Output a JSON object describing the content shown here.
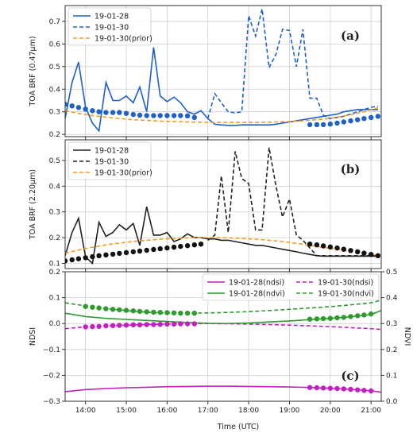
{
  "chart_data": [
    {
      "type": "line",
      "panel_label": "(a)",
      "ylabel": "TOA BRF (0.47μm)",
      "ylim": [
        0.19,
        0.77
      ],
      "yticks": [
        0.2,
        0.3,
        0.4,
        0.5,
        0.6,
        0.7
      ],
      "ytick_labels": [
        "0.2",
        "0.3",
        "0.4",
        "0.5",
        "0.6",
        "0.7"
      ],
      "grid": true,
      "legend_position": "top-left",
      "series": [
        {
          "name": "19-01-28",
          "color": "#1f5fc8",
          "style": "solid",
          "x": [
            13.5,
            13.67,
            13.83,
            14.0,
            14.17,
            14.33,
            14.5,
            14.67,
            14.83,
            15.0,
            15.17,
            15.33,
            15.5,
            15.67,
            15.83,
            16.0,
            16.17,
            16.33,
            16.5,
            16.67,
            16.83,
            17.0,
            17.17,
            17.33,
            17.5,
            17.67,
            17.83,
            18.0,
            18.17,
            18.33,
            18.5,
            18.67,
            18.83,
            19.0,
            19.17,
            19.33,
            19.5,
            19.67,
            19.83,
            20.0,
            20.17,
            20.33,
            20.5,
            20.67,
            20.83,
            21.0,
            21.17
          ],
          "y": [
            0.27,
            0.43,
            0.52,
            0.32,
            0.25,
            0.215,
            0.43,
            0.35,
            0.35,
            0.37,
            0.34,
            0.41,
            0.3,
            0.585,
            0.37,
            0.345,
            0.365,
            0.34,
            0.3,
            0.29,
            0.305,
            0.27,
            0.245,
            0.242,
            0.24,
            0.24,
            0.242,
            0.242,
            0.242,
            0.242,
            0.242,
            0.245,
            0.25,
            0.255,
            0.26,
            0.265,
            0.27,
            0.275,
            0.28,
            0.285,
            0.29,
            0.3,
            0.305,
            0.31,
            0.31,
            0.31,
            0.31
          ]
        },
        {
          "name": "19-01-30",
          "color": "#1f5fc8",
          "style": "dashed",
          "x": [
            17.0,
            17.17,
            17.33,
            17.5,
            17.67,
            17.83,
            18.0,
            18.17,
            18.33,
            18.5,
            18.67,
            18.83,
            19.0,
            19.17,
            19.33,
            19.5,
            19.67,
            19.83,
            20.0,
            20.17,
            20.33,
            20.5,
            20.67,
            20.83,
            21.0,
            21.17
          ],
          "y": [
            0.27,
            0.38,
            0.34,
            0.3,
            0.295,
            0.3,
            0.725,
            0.635,
            0.755,
            0.495,
            0.555,
            0.665,
            0.66,
            0.5,
            0.665,
            0.36,
            0.36,
            0.285,
            0.27,
            0.275,
            0.28,
            0.29,
            0.3,
            0.31,
            0.32,
            0.325
          ]
        },
        {
          "name": "19-01-30(prior)",
          "color": "#f39c25",
          "style": "dashed",
          "x": [
            13.5,
            13.83,
            14.17,
            14.5,
            14.83,
            15.17,
            15.5,
            15.83,
            16.17,
            16.5,
            16.83,
            17.17,
            17.5,
            17.83,
            18.17,
            18.5,
            18.83,
            19.17,
            19.5,
            19.83,
            20.17,
            20.5,
            20.83,
            21.17
          ],
          "y": [
            0.305,
            0.293,
            0.283,
            0.276,
            0.27,
            0.265,
            0.262,
            0.259,
            0.257,
            0.255,
            0.254,
            0.253,
            0.253,
            0.253,
            0.253,
            0.254,
            0.256,
            0.258,
            0.262,
            0.268,
            0.276,
            0.287,
            0.3,
            0.318
          ]
        }
      ],
      "markers": [
        {
          "color": "#1f5fc8",
          "x": [
            13.5,
            13.67,
            13.83,
            14.0,
            14.17,
            14.33,
            14.5,
            14.67,
            14.83,
            15.0,
            15.17,
            15.33,
            15.5,
            15.67,
            15.83,
            16.0,
            16.17,
            16.33,
            16.5,
            16.67
          ],
          "y": [
            0.333,
            0.326,
            0.319,
            0.312,
            0.305,
            0.3,
            0.297,
            0.297,
            0.297,
            0.293,
            0.288,
            0.285,
            0.283,
            0.283,
            0.283,
            0.283,
            0.283,
            0.283,
            0.282,
            0.275
          ]
        },
        {
          "color": "#1f5fc8",
          "x": [
            19.5,
            19.67,
            19.83,
            20.0,
            20.17,
            20.33,
            20.5,
            20.67,
            20.83,
            21.0,
            21.17
          ],
          "y": [
            0.243,
            0.243,
            0.243,
            0.246,
            0.25,
            0.255,
            0.26,
            0.265,
            0.27,
            0.275,
            0.28
          ]
        }
      ]
    },
    {
      "type": "line",
      "panel_label": "(b)",
      "ylabel": "TOA BRF (2.20μm)",
      "ylim": [
        0.08,
        0.58
      ],
      "yticks": [
        0.1,
        0.2,
        0.3,
        0.4,
        0.5
      ],
      "ytick_labels": [
        "0.1",
        "0.2",
        "0.3",
        "0.4",
        "0.5"
      ],
      "grid": true,
      "legend_position": "top-left",
      "series": [
        {
          "name": "19-01-28",
          "color": "#222222",
          "style": "solid",
          "x": [
            13.5,
            13.67,
            13.83,
            14.0,
            14.17,
            14.33,
            14.5,
            14.67,
            14.83,
            15.0,
            15.17,
            15.33,
            15.5,
            15.67,
            15.83,
            16.0,
            16.17,
            16.33,
            16.5,
            16.67,
            16.83,
            17.0,
            17.17,
            17.33,
            17.5,
            17.67,
            17.83,
            18.0,
            18.17,
            18.33,
            18.5,
            18.67,
            18.83,
            19.0,
            19.17,
            19.33,
            19.5,
            19.67,
            19.83,
            20.0,
            20.17,
            20.33,
            20.5,
            20.67,
            20.83,
            21.0,
            21.17
          ],
          "y": [
            0.13,
            0.22,
            0.275,
            0.125,
            0.1,
            0.26,
            0.205,
            0.22,
            0.25,
            0.23,
            0.255,
            0.17,
            0.32,
            0.21,
            0.21,
            0.22,
            0.185,
            0.195,
            0.215,
            0.2,
            0.2,
            0.195,
            0.195,
            0.19,
            0.19,
            0.185,
            0.18,
            0.175,
            0.17,
            0.17,
            0.165,
            0.16,
            0.155,
            0.15,
            0.145,
            0.14,
            0.135,
            0.13,
            0.128,
            0.128,
            0.128,
            0.128,
            0.128,
            0.128,
            0.128,
            0.128,
            0.128
          ]
        },
        {
          "name": "19-01-30",
          "color": "#222222",
          "style": "dashed",
          "x": [
            17.0,
            17.17,
            17.33,
            17.5,
            17.67,
            17.83,
            18.0,
            18.17,
            18.33,
            18.5,
            18.67,
            18.83,
            19.0,
            19.17,
            19.33,
            19.5,
            19.67,
            19.83,
            20.0,
            20.17,
            20.33,
            20.5,
            20.67,
            20.83,
            21.0,
            21.17
          ],
          "y": [
            0.19,
            0.21,
            0.44,
            0.22,
            0.535,
            0.43,
            0.41,
            0.23,
            0.23,
            0.55,
            0.4,
            0.28,
            0.35,
            0.21,
            0.19,
            0.16,
            0.13,
            0.13,
            0.13,
            0.13,
            0.13,
            0.13,
            0.13,
            0.13,
            0.13,
            0.13
          ]
        },
        {
          "name": "19-01-30(prior)",
          "color": "#f39c25",
          "style": "dashed",
          "x": [
            13.5,
            13.83,
            14.17,
            14.5,
            14.83,
            15.17,
            15.5,
            15.83,
            16.17,
            16.5,
            16.83,
            17.17,
            17.5,
            17.83,
            18.17,
            18.5,
            18.83,
            19.17,
            19.5,
            19.83,
            20.17,
            20.5,
            20.83,
            21.17
          ],
          "y": [
            0.14,
            0.152,
            0.163,
            0.172,
            0.179,
            0.185,
            0.19,
            0.194,
            0.197,
            0.199,
            0.2,
            0.2,
            0.199,
            0.197,
            0.194,
            0.19,
            0.185,
            0.178,
            0.17,
            0.162,
            0.154,
            0.146,
            0.139,
            0.132
          ]
        }
      ],
      "markers": [
        {
          "color": "#111111",
          "x": [
            13.5,
            13.67,
            13.83,
            14.0,
            14.17,
            14.33,
            14.5,
            14.67,
            14.83,
            15.0,
            15.17,
            15.33,
            15.5,
            15.67,
            15.83,
            16.0,
            16.17,
            16.33,
            16.5,
            16.67,
            16.83
          ],
          "y": [
            0.11,
            0.114,
            0.118,
            0.122,
            0.126,
            0.13,
            0.133,
            0.136,
            0.139,
            0.142,
            0.145,
            0.148,
            0.151,
            0.154,
            0.157,
            0.16,
            0.163,
            0.166,
            0.169,
            0.172,
            0.175
          ]
        },
        {
          "color": "#111111",
          "x": [
            19.5,
            19.67,
            19.83,
            20.0,
            20.17,
            20.33,
            20.5,
            20.67,
            20.83,
            21.0,
            21.17
          ],
          "y": [
            0.175,
            0.172,
            0.168,
            0.164,
            0.16,
            0.155,
            0.15,
            0.145,
            0.14,
            0.135,
            0.13
          ]
        }
      ]
    },
    {
      "type": "line",
      "panel_label": "(c)",
      "ylabel": "NDSI",
      "ylim": [
        -0.3,
        0.2
      ],
      "yticks": [
        -0.3,
        -0.2,
        -0.1,
        0.0,
        0.1,
        0.2
      ],
      "ytick_labels": [
        "−0.3",
        "−0.2",
        "−0.1",
        "0.0",
        "0.1",
        "0.2"
      ],
      "y2label": "NDVI",
      "y2lim": [
        0.0,
        0.5
      ],
      "y2ticks": [
        0.0,
        0.1,
        0.2,
        0.3,
        0.4,
        0.5
      ],
      "y2tick_labels": [
        "0.0",
        "0.1",
        "0.2",
        "0.3",
        "0.4",
        "0.5"
      ],
      "xlabel": "Time (UTC)",
      "xlim": [
        13.5,
        21.25
      ],
      "xticks": [
        14,
        15,
        16,
        17,
        18,
        19,
        20,
        21
      ],
      "xtick_labels": [
        "14:00",
        "15:00",
        "16:00",
        "17:00",
        "18:00",
        "19:00",
        "20:00",
        "21:00"
      ],
      "grid": true,
      "legend_position": "top-right",
      "series": [
        {
          "name": "19-01-28(ndsi)",
          "color": "#c11fbf",
          "style": "solid",
          "axis": "left",
          "x": [
            13.5,
            14.0,
            14.5,
            15.0,
            15.5,
            16.0,
            16.5,
            17.0,
            17.5,
            18.0,
            18.5,
            19.0,
            19.5,
            20.0,
            20.5,
            21.0,
            21.25
          ],
          "y": [
            -0.263,
            -0.255,
            -0.251,
            -0.248,
            -0.246,
            -0.244,
            -0.243,
            -0.242,
            -0.242,
            -0.243,
            -0.244,
            -0.245,
            -0.247,
            -0.25,
            -0.254,
            -0.26,
            -0.265
          ]
        },
        {
          "name": "19-01-30(ndsi)",
          "color": "#c11fbf",
          "style": "dashed",
          "axis": "left",
          "x": [
            13.5,
            14.0,
            14.5,
            15.0,
            15.5,
            16.0,
            16.5,
            17.0,
            17.5,
            18.0,
            18.5,
            19.0,
            19.5,
            20.0,
            20.5,
            21.0,
            21.25
          ],
          "y": [
            -0.02,
            -0.013,
            -0.009,
            -0.006,
            -0.004,
            -0.002,
            -0.001,
            0.0,
            -0.001,
            -0.002,
            -0.004,
            -0.006,
            -0.009,
            -0.012,
            -0.016,
            -0.02,
            -0.023
          ]
        },
        {
          "name": "19-01-28(ndvi)",
          "color": "#2f9a2f",
          "style": "solid",
          "axis": "right",
          "x": [
            13.5,
            14.0,
            14.5,
            15.0,
            15.5,
            16.0,
            16.5,
            17.0,
            17.5,
            18.0,
            18.5,
            19.0,
            19.5,
            20.0,
            20.5,
            21.0,
            21.25
          ],
          "y": [
            0.34,
            0.327,
            0.32,
            0.316,
            0.312,
            0.308,
            0.304,
            0.301,
            0.3,
            0.302,
            0.306,
            0.31,
            0.315,
            0.32,
            0.326,
            0.335,
            0.35
          ]
        },
        {
          "name": "19-01-30(ndvi)",
          "color": "#2f9a2f",
          "style": "dashed",
          "axis": "right",
          "x": [
            13.5,
            14.0,
            14.5,
            15.0,
            15.5,
            16.0,
            16.5,
            17.0,
            17.5,
            18.0,
            18.5,
            19.0,
            19.5,
            20.0,
            20.5,
            21.0,
            21.25
          ],
          "y": [
            0.38,
            0.368,
            0.358,
            0.35,
            0.344,
            0.34,
            0.34,
            0.341,
            0.343,
            0.346,
            0.35,
            0.355,
            0.36,
            0.365,
            0.372,
            0.38,
            0.39
          ]
        }
      ],
      "markers": [
        {
          "color": "#2f9a2f",
          "axis": "right",
          "x": [
            14.0,
            14.17,
            14.33,
            14.5,
            14.67,
            14.83,
            15.0,
            15.17,
            15.33,
            15.5,
            15.67,
            15.83,
            16.0,
            16.17,
            16.33,
            16.5,
            16.67
          ],
          "y": [
            0.366,
            0.363,
            0.36,
            0.357,
            0.355,
            0.353,
            0.351,
            0.349,
            0.347,
            0.345,
            0.344,
            0.343,
            0.342,
            0.341,
            0.34,
            0.34,
            0.34
          ]
        },
        {
          "color": "#2f9a2f",
          "axis": "right",
          "x": [
            19.5,
            19.67,
            19.83,
            20.0,
            20.17,
            20.33,
            20.5,
            20.67,
            20.83,
            21.0
          ],
          "y": [
            0.317,
            0.318,
            0.319,
            0.32,
            0.322,
            0.324,
            0.327,
            0.33,
            0.333,
            0.337
          ]
        },
        {
          "color": "#c11fbf",
          "axis": "left",
          "x": [
            14.0,
            14.17,
            14.33,
            14.5,
            14.67,
            14.83,
            15.0,
            15.17,
            15.33,
            15.5,
            15.67,
            15.83,
            16.0,
            16.17,
            16.33,
            16.5,
            16.67
          ],
          "y": [
            -0.013,
            -0.012,
            -0.011,
            -0.009,
            -0.008,
            -0.007,
            -0.006,
            -0.005,
            -0.005,
            -0.004,
            -0.004,
            -0.003,
            -0.002,
            -0.002,
            -0.001,
            -0.001,
            -0.001
          ]
        },
        {
          "color": "#c11fbf",
          "axis": "left",
          "x": [
            19.5,
            19.67,
            19.83,
            20.0,
            20.17,
            20.33,
            20.5,
            20.67,
            20.83,
            21.0
          ],
          "y": [
            -0.247,
            -0.248,
            -0.249,
            -0.25,
            -0.251,
            -0.252,
            -0.254,
            -0.256,
            -0.258,
            -0.26
          ]
        }
      ]
    }
  ]
}
